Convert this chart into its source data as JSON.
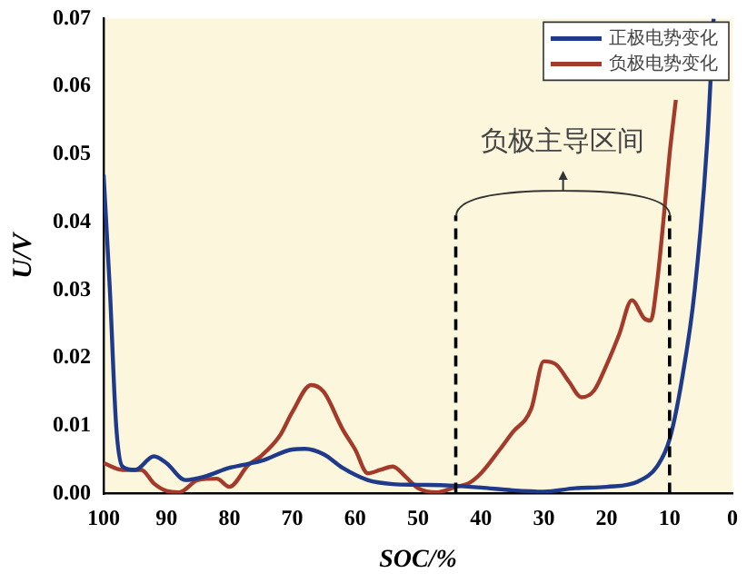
{
  "chart_data": {
    "type": "line",
    "xlabel": "SOC/%",
    "ylabel": "U/V",
    "xlim": [
      100,
      0
    ],
    "xticks": [
      100,
      90,
      80,
      70,
      60,
      50,
      40,
      30,
      20,
      10,
      0
    ],
    "ylim": [
      0,
      0.07
    ],
    "yticks": [
      {
        "value": 0,
        "label": "0.00"
      },
      {
        "value": 0.01,
        "label": "0.01"
      },
      {
        "value": 0.02,
        "label": "0.02"
      },
      {
        "value": 0.03,
        "label": "0.03"
      },
      {
        "value": 0.04,
        "label": "0.04"
      },
      {
        "value": 0.05,
        "label": "0.05"
      },
      {
        "value": 0.06,
        "label": "0.06"
      },
      {
        "value": 0.07,
        "label": "0.07"
      }
    ],
    "series": [
      {
        "name": "正极电势变化",
        "color": "#1f3a8a",
        "x": [
          100,
          99,
          98,
          97,
          95,
          92,
          90,
          87,
          84,
          80,
          75,
          70,
          68,
          65,
          62,
          58,
          54,
          50,
          45,
          40,
          35,
          30,
          25,
          20,
          15,
          12,
          10,
          8,
          6,
          4,
          3
        ],
        "values": [
          0.047,
          0.03,
          0.01,
          0.004,
          0.0035,
          0.0055,
          0.0045,
          0.002,
          0.0025,
          0.0038,
          0.0048,
          0.0065,
          0.0066,
          0.0058,
          0.0038,
          0.002,
          0.0014,
          0.0013,
          0.0012,
          0.0009,
          0.0005,
          0.0003,
          0.0008,
          0.001,
          0.0018,
          0.004,
          0.008,
          0.017,
          0.03,
          0.052,
          0.07
        ]
      },
      {
        "name": "负极电势变化",
        "color": "#a33a2a",
        "x": [
          100,
          97,
          94,
          92,
          90,
          88,
          85,
          82,
          80,
          77,
          75,
          72,
          70,
          67,
          65,
          62,
          60,
          58,
          56,
          54,
          52,
          50,
          47,
          44,
          42,
          40,
          37,
          35,
          32,
          30,
          28,
          26,
          24,
          22,
          20,
          18,
          16,
          14,
          13,
          12,
          11,
          10,
          9
        ],
        "values": [
          0.0045,
          0.0035,
          0.0035,
          0.0015,
          0.0004,
          0.0002,
          0.002,
          0.0022,
          0.001,
          0.0042,
          0.0055,
          0.0085,
          0.012,
          0.016,
          0.015,
          0.0095,
          0.0065,
          0.003,
          0.0035,
          0.004,
          0.0025,
          0.0008,
          0.0002,
          0.001,
          0.0015,
          0.003,
          0.0065,
          0.009,
          0.0125,
          0.0195,
          0.019,
          0.0165,
          0.0142,
          0.0152,
          0.019,
          0.0235,
          0.0285,
          0.0258,
          0.0255,
          0.031,
          0.04,
          0.05,
          0.058
        ]
      }
    ],
    "ref_lines": [
      {
        "axis": "x",
        "value": 44,
        "color": "#000000",
        "line_style": "dashed"
      },
      {
        "axis": "x",
        "value": 10,
        "color": "#000000",
        "line_style": "dashed"
      }
    ],
    "annotations": [
      "负极主导区间"
    ],
    "grid": false,
    "legend": "top right",
    "marker": "none",
    "line_style": "solid"
  }
}
